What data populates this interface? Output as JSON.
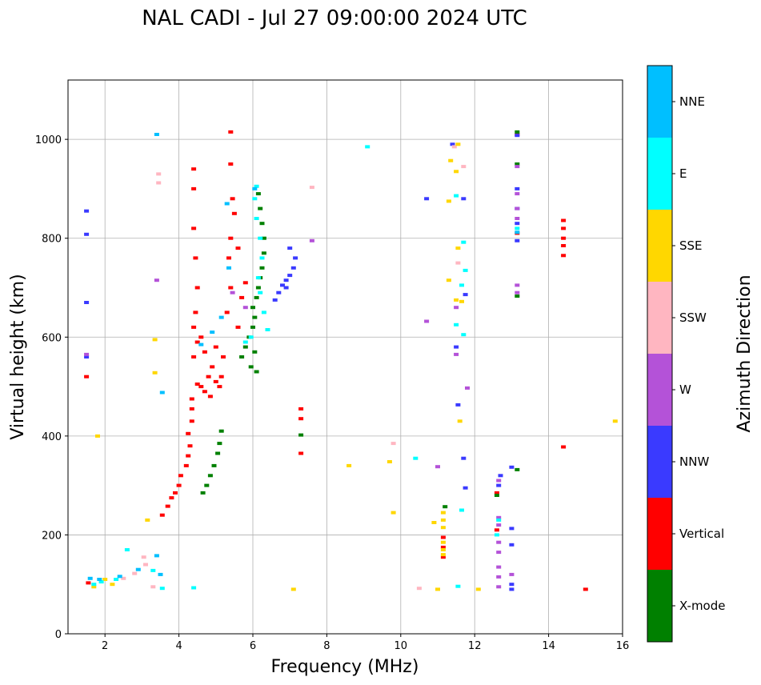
{
  "chart_data": {
    "type": "scatter",
    "title": "NAL CADI - Jul 27 09:00:00 2024 UTC",
    "xlabel": "Frequency (MHz)",
    "ylabel": "Virtual height (km)",
    "xlim": [
      1,
      16
    ],
    "ylim": [
      0,
      1120
    ],
    "xticks": [
      2,
      4,
      6,
      8,
      10,
      12,
      14,
      16
    ],
    "yticks": [
      0,
      200,
      400,
      600,
      800,
      1000
    ],
    "grid": true,
    "colorbar": {
      "title": "Azimuth Direction",
      "categories": [
        {
          "label": "X-mode",
          "color": "#008000"
        },
        {
          "label": "Vertical",
          "color": "#ff0000"
        },
        {
          "label": "NNW",
          "color": "#3a3aff"
        },
        {
          "label": "W",
          "color": "#b452d8"
        },
        {
          "label": "SSW",
          "color": "#ffb6c1"
        },
        {
          "label": "SSE",
          "color": "#ffd700"
        },
        {
          "label": "E",
          "color": "#00ffff"
        },
        {
          "label": "NNE",
          "color": "#00bfff"
        }
      ]
    },
    "series": [
      {
        "name": "Vertical",
        "color": "#ff0000",
        "points": [
          [
            1.55,
            103
          ],
          [
            1.5,
            520
          ],
          [
            3.55,
            240
          ],
          [
            3.7,
            258
          ],
          [
            3.8,
            275
          ],
          [
            3.9,
            285
          ],
          [
            4.0,
            300
          ],
          [
            4.05,
            320
          ],
          [
            4.2,
            340
          ],
          [
            4.25,
            360
          ],
          [
            4.3,
            380
          ],
          [
            4.25,
            405
          ],
          [
            4.35,
            430
          ],
          [
            4.35,
            455
          ],
          [
            4.35,
            475
          ],
          [
            4.5,
            505
          ],
          [
            4.6,
            500
          ],
          [
            4.7,
            490
          ],
          [
            4.85,
            480
          ],
          [
            4.8,
            520
          ],
          [
            5.0,
            510
          ],
          [
            5.1,
            500
          ],
          [
            5.15,
            520
          ],
          [
            4.4,
            560
          ],
          [
            4.5,
            590
          ],
          [
            4.4,
            620
          ],
          [
            4.45,
            650
          ],
          [
            4.6,
            600
          ],
          [
            4.7,
            570
          ],
          [
            4.9,
            540
          ],
          [
            5.0,
            580
          ],
          [
            5.2,
            560
          ],
          [
            4.5,
            700
          ],
          [
            4.45,
            760
          ],
          [
            4.4,
            820
          ],
          [
            4.4,
            900
          ],
          [
            4.4,
            940
          ],
          [
            5.3,
            650
          ],
          [
            5.4,
            700
          ],
          [
            5.35,
            760
          ],
          [
            5.4,
            800
          ],
          [
            5.45,
            880
          ],
          [
            5.4,
            950
          ],
          [
            5.4,
            1015
          ],
          [
            5.6,
            620
          ],
          [
            5.7,
            680
          ],
          [
            5.8,
            710
          ],
          [
            5.6,
            780
          ],
          [
            5.5,
            850
          ],
          [
            7.3,
            435
          ],
          [
            7.3,
            455
          ],
          [
            7.3,
            365
          ],
          [
            11.15,
            195
          ],
          [
            11.15,
            175
          ],
          [
            11.15,
            155
          ],
          [
            12.6,
            210
          ],
          [
            12.6,
            285
          ],
          [
            13.15,
            810
          ],
          [
            13.15,
            1010
          ],
          [
            14.4,
            765
          ],
          [
            14.4,
            785
          ],
          [
            14.4,
            800
          ],
          [
            14.4,
            820
          ],
          [
            14.4,
            836
          ],
          [
            14.4,
            378
          ],
          [
            15.0,
            90
          ]
        ]
      },
      {
        "name": "X-mode",
        "color": "#008000",
        "points": [
          [
            4.65,
            285
          ],
          [
            4.75,
            300
          ],
          [
            4.85,
            320
          ],
          [
            4.95,
            340
          ],
          [
            5.05,
            365
          ],
          [
            5.1,
            385
          ],
          [
            5.15,
            410
          ],
          [
            5.7,
            560
          ],
          [
            5.8,
            580
          ],
          [
            5.9,
            600
          ],
          [
            6.0,
            620
          ],
          [
            6.05,
            640
          ],
          [
            6.0,
            660
          ],
          [
            6.1,
            680
          ],
          [
            6.15,
            700
          ],
          [
            6.2,
            720
          ],
          [
            6.25,
            740
          ],
          [
            6.3,
            770
          ],
          [
            6.3,
            800
          ],
          [
            6.25,
            830
          ],
          [
            6.2,
            860
          ],
          [
            6.15,
            890
          ],
          [
            5.95,
            540
          ],
          [
            6.05,
            570
          ],
          [
            6.1,
            530
          ],
          [
            7.3,
            402
          ],
          [
            11.2,
            257
          ],
          [
            12.6,
            280
          ],
          [
            13.15,
            332
          ],
          [
            13.15,
            683
          ],
          [
            13.15,
            950
          ],
          [
            13.15,
            1015
          ]
        ]
      },
      {
        "name": "NNW",
        "color": "#3a3aff",
        "points": [
          [
            6.6,
            675
          ],
          [
            6.7,
            690
          ],
          [
            6.8,
            705
          ],
          [
            6.9,
            715
          ],
          [
            7.0,
            725
          ],
          [
            7.1,
            740
          ],
          [
            7.15,
            760
          ],
          [
            7.0,
            780
          ],
          [
            6.9,
            700
          ],
          [
            1.5,
            670
          ],
          [
            1.5,
            808
          ],
          [
            1.5,
            855
          ],
          [
            1.5,
            560
          ],
          [
            12.65,
            300
          ],
          [
            12.7,
            320
          ],
          [
            13.0,
            100
          ],
          [
            13.0,
            90
          ],
          [
            13.15,
            830
          ],
          [
            13.15,
            860
          ],
          [
            13.15,
            900
          ],
          [
            13.15,
            795
          ],
          [
            13.15,
            1008
          ],
          [
            11.5,
            580
          ],
          [
            11.4,
            990
          ],
          [
            11.7,
            880
          ],
          [
            10.7,
            880
          ],
          [
            11.75,
            686
          ],
          [
            11.7,
            355
          ],
          [
            11.55,
            463
          ],
          [
            11.75,
            295
          ],
          [
            13.0,
            180
          ],
          [
            13.0,
            213
          ],
          [
            13.0,
            337
          ]
        ]
      },
      {
        "name": "W",
        "color": "#b452d8",
        "points": [
          [
            12.65,
            95
          ],
          [
            12.65,
            115
          ],
          [
            12.65,
            135
          ],
          [
            12.65,
            165
          ],
          [
            12.65,
            185
          ],
          [
            12.65,
            220
          ],
          [
            12.65,
            235
          ],
          [
            12.65,
            310
          ],
          [
            13.0,
            120
          ],
          [
            13.15,
            690
          ],
          [
            13.15,
            705
          ],
          [
            13.15,
            840
          ],
          [
            13.15,
            860
          ],
          [
            13.15,
            890
          ],
          [
            13.15,
            945
          ],
          [
            1.5,
            565
          ],
          [
            7.6,
            795
          ],
          [
            10.7,
            632
          ],
          [
            11.5,
            565
          ],
          [
            11.8,
            497
          ],
          [
            11.0,
            338
          ],
          [
            11.5,
            660
          ],
          [
            5.8,
            660
          ],
          [
            5.45,
            690
          ],
          [
            3.4,
            715
          ]
        ]
      },
      {
        "name": "SSW",
        "color": "#ffb6c1",
        "points": [
          [
            3.05,
            155
          ],
          [
            3.1,
            140
          ],
          [
            3.3,
            95
          ],
          [
            2.5,
            112
          ],
          [
            2.8,
            122
          ],
          [
            3.45,
            930
          ],
          [
            3.45,
            912
          ],
          [
            9.8,
            385
          ],
          [
            11.55,
            750
          ],
          [
            11.45,
            985
          ],
          [
            11.7,
            945
          ],
          [
            10.5,
            92
          ],
          [
            7.6,
            903
          ]
        ]
      },
      {
        "name": "SSE",
        "color": "#ffd700",
        "points": [
          [
            11.15,
            245
          ],
          [
            11.15,
            230
          ],
          [
            11.15,
            215
          ],
          [
            11.15,
            160
          ],
          [
            11.15,
            170
          ],
          [
            11.15,
            185
          ],
          [
            11.0,
            90
          ],
          [
            12.1,
            90
          ],
          [
            8.6,
            340
          ],
          [
            9.7,
            348
          ],
          [
            9.8,
            245
          ],
          [
            10.9,
            225
          ],
          [
            11.3,
            715
          ],
          [
            11.5,
            675
          ],
          [
            11.6,
            430
          ],
          [
            11.55,
            990
          ],
          [
            11.5,
            935
          ],
          [
            11.35,
            957
          ],
          [
            11.3,
            875
          ],
          [
            11.55,
            780
          ],
          [
            11.65,
            672
          ],
          [
            3.35,
            595
          ],
          [
            3.35,
            528
          ],
          [
            3.15,
            230
          ],
          [
            1.8,
            400
          ],
          [
            2.2,
            100
          ],
          [
            2.0,
            110
          ],
          [
            1.7,
            95
          ],
          [
            7.1,
            90
          ],
          [
            15.8,
            430
          ]
        ]
      },
      {
        "name": "E",
        "color": "#00ffff",
        "points": [
          [
            6.4,
            615
          ],
          [
            6.3,
            650
          ],
          [
            6.2,
            690
          ],
          [
            6.15,
            720
          ],
          [
            6.25,
            760
          ],
          [
            6.2,
            800
          ],
          [
            6.1,
            840
          ],
          [
            6.05,
            880
          ],
          [
            6.1,
            905
          ],
          [
            5.95,
            600
          ],
          [
            5.8,
            590
          ],
          [
            9.1,
            985
          ],
          [
            10.4,
            355
          ],
          [
            11.5,
            886
          ],
          [
            11.7,
            792
          ],
          [
            11.65,
            705
          ],
          [
            11.75,
            735
          ],
          [
            11.5,
            625
          ],
          [
            11.7,
            605
          ],
          [
            11.65,
            250
          ],
          [
            11.55,
            96
          ],
          [
            13.15,
            820
          ],
          [
            12.6,
            200
          ],
          [
            12.65,
            230
          ],
          [
            2.6,
            170
          ],
          [
            2.3,
            110
          ],
          [
            1.9,
            105
          ],
          [
            1.7,
            100
          ],
          [
            4.4,
            93
          ],
          [
            3.55,
            92
          ],
          [
            3.3,
            128
          ]
        ]
      },
      {
        "name": "NNE",
        "color": "#00bfff",
        "points": [
          [
            3.4,
            1010
          ],
          [
            5.15,
            640
          ],
          [
            4.9,
            610
          ],
          [
            4.6,
            585
          ],
          [
            5.35,
            740
          ],
          [
            5.3,
            870
          ],
          [
            6.05,
            900
          ],
          [
            13.15,
            812
          ],
          [
            3.4,
            158
          ],
          [
            3.55,
            488
          ],
          [
            3.5,
            120
          ],
          [
            2.9,
            130
          ],
          [
            2.4,
            116
          ],
          [
            1.85,
            110
          ],
          [
            1.6,
            112
          ]
        ]
      }
    ]
  }
}
